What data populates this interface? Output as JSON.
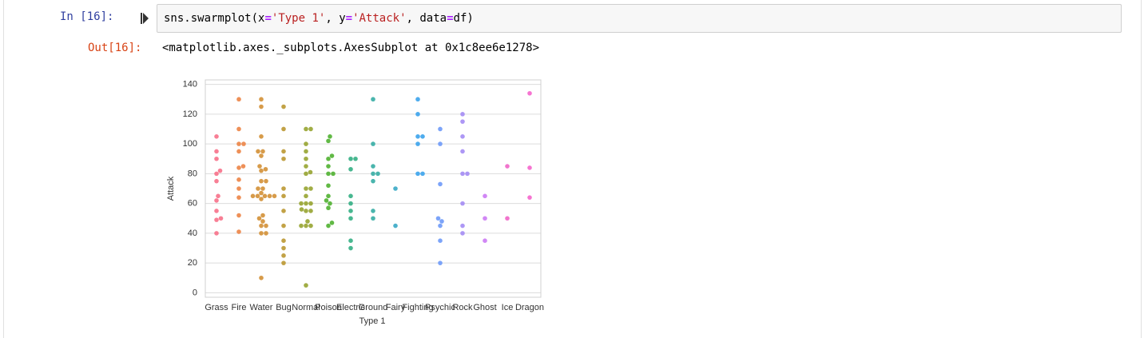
{
  "cell": {
    "input_prompt": "In [16]:",
    "code": [
      "sns.swarmplot(",
      "x",
      "=",
      "'Type 1'",
      ", ",
      "y",
      "=",
      "'Attack'",
      ", ",
      "data",
      "=",
      "df",
      ")"
    ],
    "output_prompt": "Out[16]:",
    "output_text": "<matplotlib.axes._subplots.AxesSubplot at 0x1c8ee6e1278>"
  },
  "chart_data": {
    "type": "swarm",
    "xlabel": "Type 1",
    "ylabel": "Attack",
    "categories": [
      "Grass",
      "Fire",
      "Water",
      "Bug",
      "Normal",
      "Poison",
      "Electric",
      "Ground",
      "Fairy",
      "Fighting",
      "Psychic",
      "Rock",
      "Ghost",
      "Ice",
      "Dragon"
    ],
    "values": [
      [
        49,
        62,
        82,
        50,
        65,
        80,
        75,
        90,
        105,
        40,
        95,
        55
      ],
      [
        52,
        64,
        84,
        41,
        76,
        70,
        110,
        85,
        100,
        95,
        130,
        100
      ],
      [
        48,
        63,
        83,
        52,
        82,
        50,
        65,
        95,
        40,
        70,
        65,
        75,
        45,
        70,
        65,
        95,
        105,
        130,
        40,
        65,
        67,
        92,
        45,
        75,
        10,
        125,
        85,
        65
      ],
      [
        30,
        20,
        45,
        35,
        25,
        90,
        70,
        95,
        55,
        65,
        110,
        125
      ],
      [
        45,
        60,
        80,
        56,
        81,
        60,
        90,
        45,
        70,
        45,
        70,
        65,
        85,
        110,
        55,
        5,
        95,
        100,
        48,
        55,
        60,
        110
      ],
      [
        60,
        85,
        47,
        62,
        92,
        57,
        72,
        102,
        45,
        80,
        80,
        105,
        65,
        90
      ],
      [
        55,
        90,
        35,
        60,
        30,
        50,
        83,
        65,
        90
      ],
      [
        75,
        100,
        55,
        80,
        50,
        80,
        85,
        130
      ],
      [
        45,
        70
      ],
      [
        80,
        105,
        80,
        100,
        130,
        120,
        105
      ],
      [
        20,
        35,
        50,
        48,
        73,
        45,
        110,
        100
      ],
      [
        80,
        95,
        120,
        45,
        40,
        60,
        80,
        115,
        105
      ],
      [
        35,
        50,
        65
      ],
      [
        50,
        85
      ],
      [
        64,
        84,
        134
      ]
    ],
    "colors": [
      "#f77189",
      "#ec8446",
      "#d39036",
      "#bb9832",
      "#97a431",
      "#50b131",
      "#34af84",
      "#36ada4",
      "#38a9c5",
      "#3ba3ec",
      "#6e9af8",
      "#a48cf4",
      "#cc7af4",
      "#f066c8",
      "#f565cc"
    ],
    "ylim": [
      -3,
      143
    ],
    "yticks": [
      0,
      20,
      40,
      60,
      80,
      100,
      120,
      140
    ],
    "grid": true
  }
}
